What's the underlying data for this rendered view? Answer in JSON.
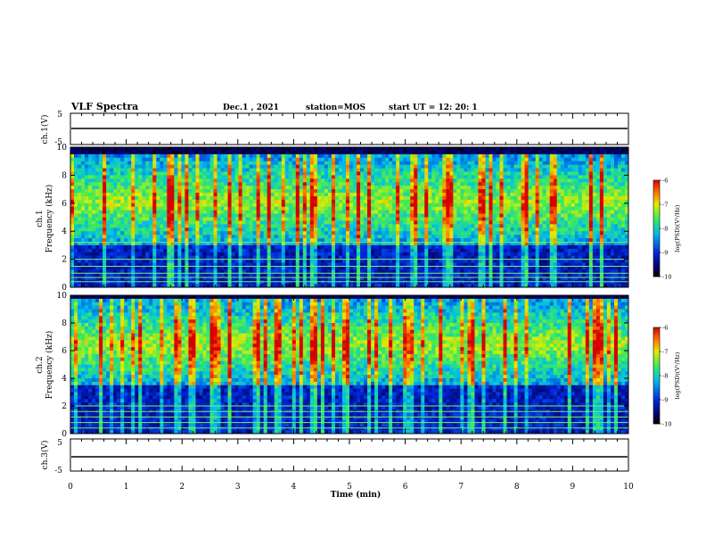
{
  "header": {
    "title": "VLF Spectra",
    "date": "Dec.1 , 2021",
    "station": "station=MOS",
    "start_ut": "start UT =  12: 20: 1"
  },
  "chart_data": [
    {
      "type": "line",
      "id": "ch1-waveform",
      "ylabel": "ch.1(V)",
      "ylim": [
        -5,
        5
      ],
      "yticks": [
        "5",
        "-5"
      ],
      "xlim": [
        0,
        10
      ],
      "description_values": {
        "level": -0.3
      }
    },
    {
      "type": "heatmap",
      "id": "ch1-spectrogram",
      "ylabel_lines": [
        "ch.1",
        "Frequency (kHz)"
      ],
      "ylim": [
        0,
        10
      ],
      "yticks": [
        "0",
        "2",
        "4",
        "6",
        "8",
        "10"
      ],
      "xlim": [
        0,
        10
      ],
      "colorbar": {
        "label": "log(PSD)(V²/Hz)",
        "range": [
          -10,
          -6
        ],
        "ticks": [
          "-6",
          "-7",
          "-8",
          "-9",
          "-10"
        ]
      },
      "enhanced_band_khz": [
        3,
        9.2
      ],
      "tone_lines_khz": [
        0.4,
        0.7,
        1.0,
        1.5,
        2.0,
        3.2
      ]
    },
    {
      "type": "heatmap",
      "id": "ch2-spectrogram",
      "ylabel_lines": [
        "ch.2",
        "Frequency (kHz)"
      ],
      "ylim": [
        0,
        10
      ],
      "yticks": [
        "0",
        "2",
        "4",
        "6",
        "8",
        "10"
      ],
      "xlim": [
        0,
        10
      ],
      "colorbar": {
        "label": "log(PSD)(V²/Hz)",
        "range": [
          -10,
          -6
        ],
        "ticks": [
          "-6",
          "-7",
          "-8",
          "-9",
          "-10"
        ]
      },
      "enhanced_band_khz": [
        3.5,
        9.5
      ],
      "tone_lines_khz": [
        0.4,
        0.8,
        1.2,
        1.6,
        2.0
      ]
    },
    {
      "type": "line",
      "id": "ch3-waveform",
      "ylabel": "ch.3(V)",
      "ylim": [
        -5,
        5
      ],
      "yticks": [
        "5",
        "-5"
      ],
      "xlim": [
        0,
        10
      ],
      "description_values": {
        "level": -0.5
      }
    }
  ],
  "x_axis": {
    "label": "Time (min)",
    "ticks": [
      "0",
      "1",
      "2",
      "3",
      "4",
      "5",
      "6",
      "7",
      "8",
      "9",
      "10"
    ]
  }
}
